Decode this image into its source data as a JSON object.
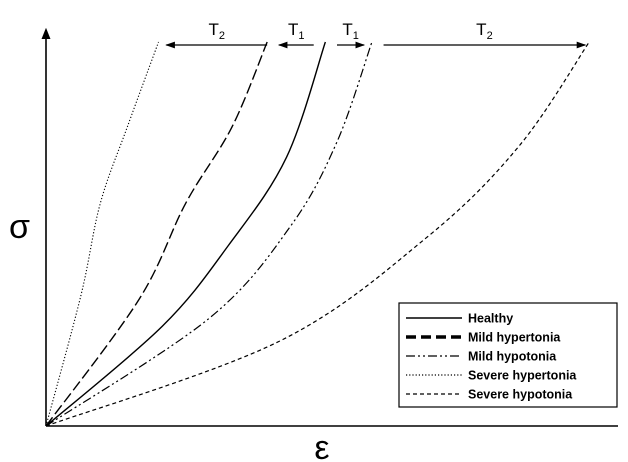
{
  "chart_data": {
    "type": "line",
    "title": "",
    "xlabel": "ε",
    "ylabel": "σ",
    "ticks": false,
    "grid": false,
    "legend_position": "bottom-right",
    "series": [
      {
        "name": "Healthy",
        "dash": "solid",
        "points": [
          [
            0,
            0
          ],
          [
            0.3,
            0.26
          ],
          [
            0.47,
            0.47
          ],
          [
            0.62,
            0.7
          ],
          [
            0.72,
            1.0
          ]
        ]
      },
      {
        "name": "Mild hypertonia",
        "dash": "long-dash",
        "points": [
          [
            0,
            0
          ],
          [
            0.24,
            0.33
          ],
          [
            0.36,
            0.58
          ],
          [
            0.48,
            0.78
          ],
          [
            0.57,
            1.0
          ]
        ]
      },
      {
        "name": "Mild hypotonia",
        "dash": "dash-dot-dot",
        "points": [
          [
            0,
            0
          ],
          [
            0.42,
            0.28
          ],
          [
            0.63,
            0.52
          ],
          [
            0.75,
            0.74
          ],
          [
            0.84,
            1.0
          ]
        ]
      },
      {
        "name": "Severe hypertonia",
        "dash": "dotted",
        "points": [
          [
            0,
            0
          ],
          [
            0.09,
            0.34
          ],
          [
            0.14,
            0.58
          ],
          [
            0.21,
            0.78
          ],
          [
            0.29,
            1.0
          ]
        ]
      },
      {
        "name": "Severe hypotonia",
        "dash": "short-dash",
        "points": [
          [
            0,
            0
          ],
          [
            0.6,
            0.22
          ],
          [
            0.98,
            0.49
          ],
          [
            1.22,
            0.73
          ],
          [
            1.4,
            1.0
          ]
        ]
      }
    ],
    "annotations": [
      {
        "label": "T",
        "sub": "2",
        "direction": "left",
        "from_x": 0.57,
        "to_x": 0.31
      },
      {
        "label": "T",
        "sub": "1",
        "direction": "left",
        "from_x": 0.69,
        "to_x": 0.6
      },
      {
        "label": "T",
        "sub": "1",
        "direction": "right",
        "from_x": 0.75,
        "to_x": 0.82
      },
      {
        "label": "T",
        "sub": "2",
        "direction": "right",
        "from_x": 0.87,
        "to_x": 1.39
      }
    ]
  }
}
